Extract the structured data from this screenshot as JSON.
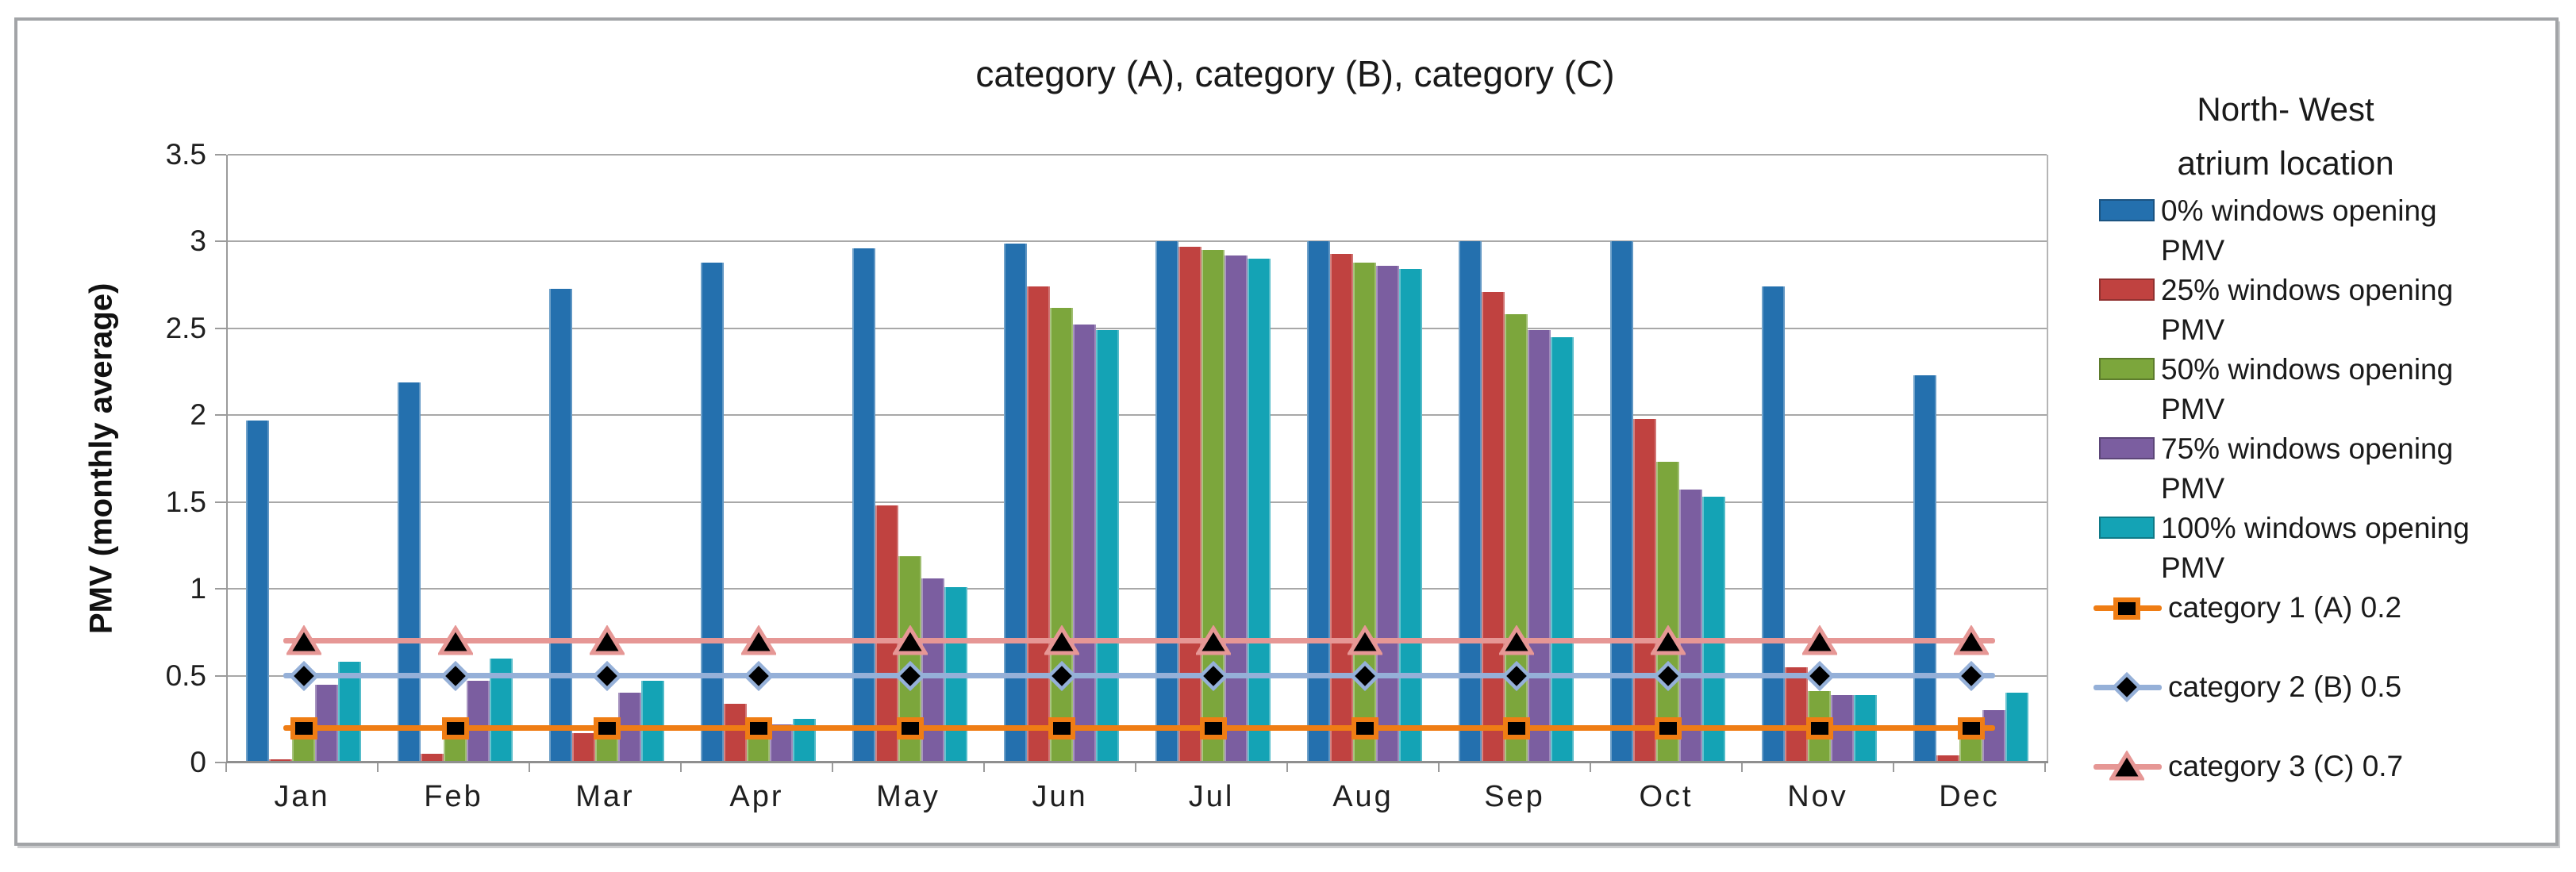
{
  "chart_data": {
    "type": "bar",
    "title": "category (A), category (B), category (C)",
    "ylabel": "PMV (monthly average)",
    "ylim": [
      0,
      3.5
    ],
    "ytick_step": 0.5,
    "ytick_labels": [
      "0",
      "0.5",
      "1",
      "1.5",
      "2",
      "2.5",
      "3",
      "3.5"
    ],
    "grid": true,
    "legend_position": "right",
    "legend_title_lines": [
      "North- West",
      "atrium location"
    ],
    "categories": [
      "Jan",
      "Feb",
      "Mar",
      "Apr",
      "May",
      "Jun",
      "Jul",
      "Aug",
      "Sep",
      "Oct",
      "Nov",
      "Dec"
    ],
    "series": [
      {
        "key": "0pct",
        "name": "0% windows opening PMV",
        "legend_lines": [
          "0% windows opening",
          "PMV"
        ],
        "color": "#2470AE",
        "values": [
          1.97,
          2.19,
          2.73,
          2.88,
          2.96,
          2.99,
          3.0,
          3.0,
          3.0,
          3.0,
          2.74,
          2.23
        ]
      },
      {
        "key": "25pct",
        "name": "25% windows opening PMV",
        "legend_lines": [
          "25% windows opening",
          "PMV"
        ],
        "color": "#C04240",
        "values": [
          0.02,
          0.05,
          0.17,
          0.34,
          1.48,
          2.74,
          2.97,
          2.93,
          2.71,
          1.98,
          0.55,
          0.04
        ]
      },
      {
        "key": "50pct",
        "name": "50% windows opening PMV",
        "legend_lines": [
          "50% windows opening",
          "PMV"
        ],
        "color": "#7CA63C",
        "values": [
          0.22,
          0.22,
          0.22,
          0.24,
          1.19,
          2.62,
          2.95,
          2.88,
          2.58,
          1.73,
          0.41,
          0.24
        ]
      },
      {
        "key": "75pct",
        "name": "75% windows opening PMV",
        "legend_lines": [
          "75% windows opening",
          "PMV"
        ],
        "color": "#7B5EA0",
        "values": [
          0.45,
          0.47,
          0.4,
          0.22,
          1.06,
          2.52,
          2.92,
          2.86,
          2.49,
          1.57,
          0.39,
          0.3
        ]
      },
      {
        "key": "100pct",
        "name": "100% windows opening PMV",
        "legend_lines": [
          "100% windows opening",
          "PMV"
        ],
        "color": "#14A3B5",
        "values": [
          0.58,
          0.6,
          0.47,
          0.25,
          1.01,
          2.49,
          2.9,
          2.84,
          2.45,
          1.53,
          0.39,
          0.4
        ]
      }
    ],
    "ref_lines": [
      {
        "name": "category 1 (A) 0.2",
        "value": 0.2,
        "line_color": "#EF7D14",
        "marker": "square",
        "marker_fill": "#000000"
      },
      {
        "name": "category 2 (B) 0.5",
        "value": 0.5,
        "line_color": "#95B0D8",
        "marker": "diamond",
        "marker_fill": "#000000"
      },
      {
        "name": "category 3 (C) 0.7",
        "value": 0.7,
        "line_color": "#E69795",
        "marker": "triangle",
        "marker_fill": "#000000"
      }
    ],
    "axis_color": "#9B9B9B",
    "gridline_color": "#A8A8A8"
  }
}
